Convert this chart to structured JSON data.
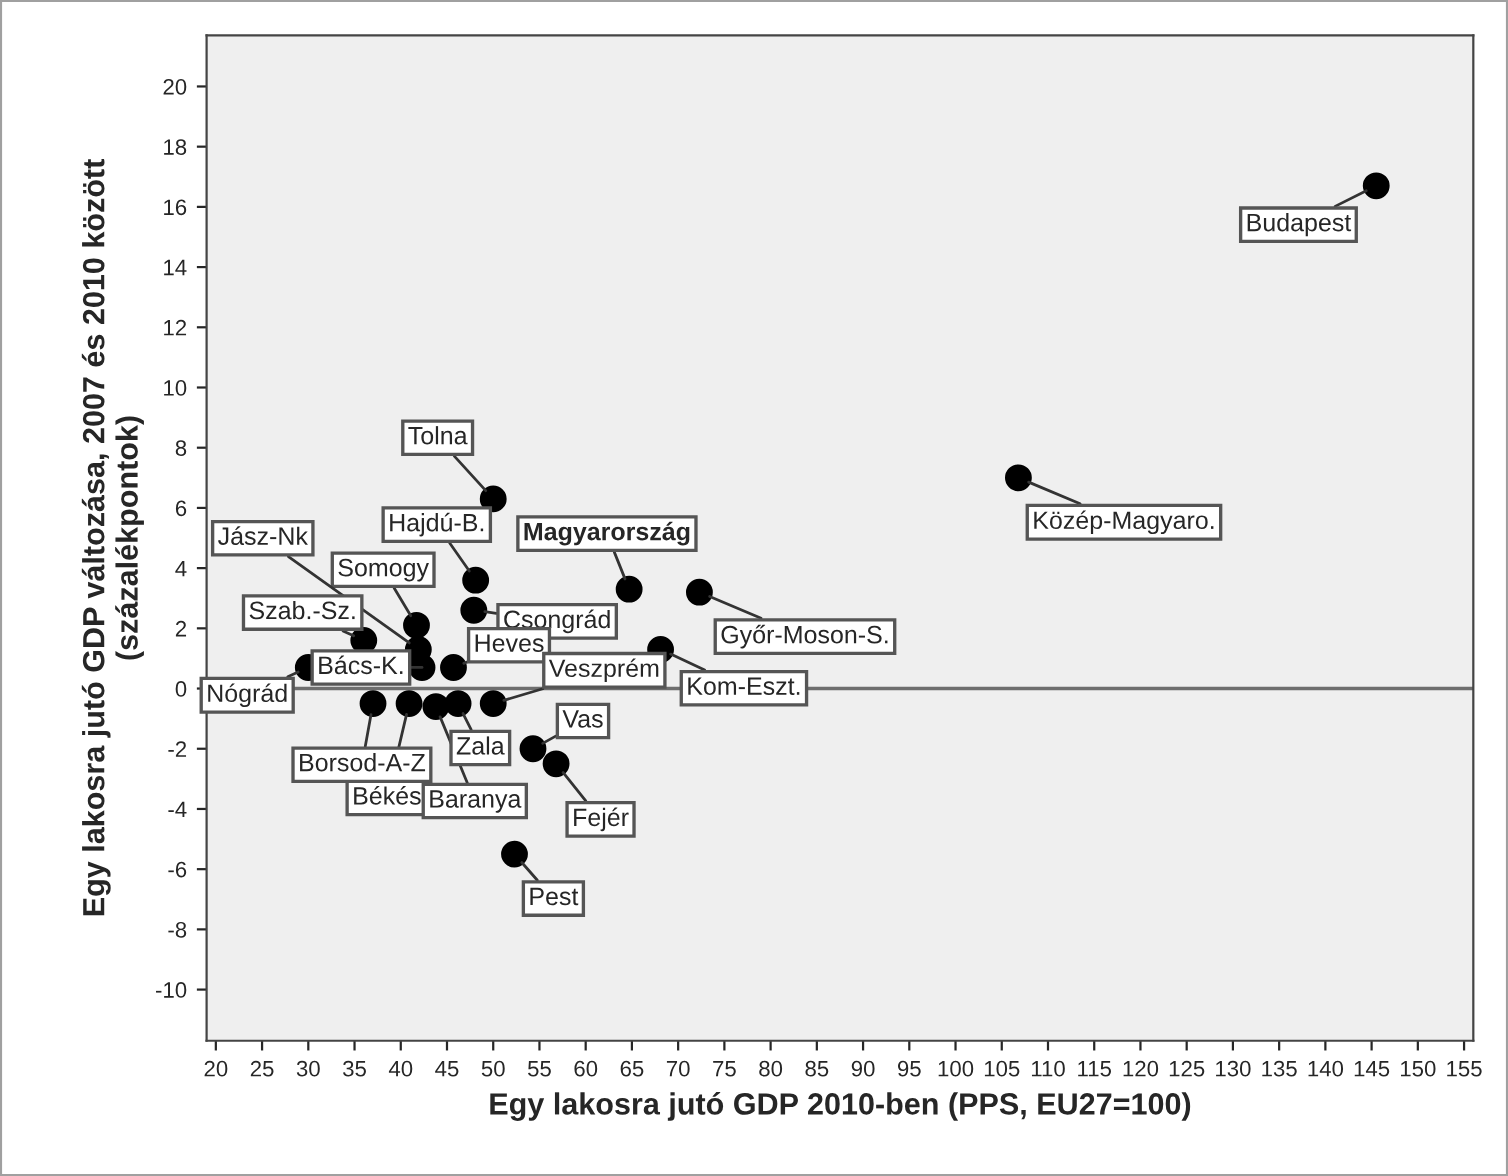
{
  "chart_data": {
    "type": "scatter",
    "xlabel": "Egy lakosra jutó GDP 2010-ben (PPS, EU27=100)",
    "ylabel": "Egy lakosra jutó GDP változása, 2007 és 2010 között\n(százalékpontok)",
    "series": [
      {
        "color": "#000000",
        "x": [
          145.5,
          106.8,
          64.7,
          72.3,
          68.1,
          50.0,
          48.1,
          47.9,
          41.7,
          41.9,
          42.3,
          36.0,
          30.0,
          45.7,
          50.0,
          37.0,
          40.9,
          43.8,
          46.2,
          54.3,
          56.8,
          52.3
        ],
        "values": [
          16.7,
          7.0,
          3.3,
          3.2,
          1.3,
          6.3,
          3.6,
          2.6,
          2.1,
          1.3,
          0.7,
          1.6,
          0.7,
          0.7,
          -0.5,
          -0.5,
          -0.5,
          -0.6,
          -0.5,
          -2.0,
          -2.5,
          -5.5
        ]
      }
    ],
    "annotations": [
      {
        "text": "Budapest",
        "x": 145.5,
        "y": 16.7
      },
      {
        "text": "Közép-Magyaro.",
        "x": 106.8,
        "y": 7.0
      },
      {
        "text": "Magyarország",
        "x": 64.7,
        "y": 3.3
      },
      {
        "text": "Győr-Moson-S.",
        "x": 72.3,
        "y": 3.2
      },
      {
        "text": "Kom-Eszt.",
        "x": 68.1,
        "y": 1.3
      },
      {
        "text": "Tolna",
        "x": 50.0,
        "y": 6.3
      },
      {
        "text": "Hajdú-B.",
        "x": 48.1,
        "y": 3.6
      },
      {
        "text": "Csongrád",
        "x": 47.9,
        "y": 2.6
      },
      {
        "text": "Somogy",
        "x": 41.7,
        "y": 2.1
      },
      {
        "text": "Jász-Nk",
        "x": 41.9,
        "y": 1.3
      },
      {
        "text": "Bács-K.",
        "x": 42.3,
        "y": 0.7
      },
      {
        "text": "Szab.-Sz.",
        "x": 36.0,
        "y": 1.6
      },
      {
        "text": "Nógrád",
        "x": 30.0,
        "y": 0.7
      },
      {
        "text": "Heves",
        "x": 45.7,
        "y": 0.7
      },
      {
        "text": "Veszprém",
        "x": 50.0,
        "y": -0.5
      },
      {
        "text": "Borsod-A-Z",
        "x": 37.0,
        "y": -0.5
      },
      {
        "text": "Békés",
        "x": 40.9,
        "y": -0.5
      },
      {
        "text": "Baranya",
        "x": 43.8,
        "y": -0.6
      },
      {
        "text": "Zala",
        "x": 46.2,
        "y": -0.5
      },
      {
        "text": "Vas",
        "x": 54.3,
        "y": -2.0
      },
      {
        "text": "Fejér",
        "x": 56.8,
        "y": -2.5
      },
      {
        "text": "Pest",
        "x": 52.3,
        "y": -5.5
      }
    ],
    "ref_lines": [
      {
        "axis": "y",
        "value": 0,
        "color": "#6e6e6e"
      }
    ],
    "xlim": [
      19,
      156
    ],
    "xticks": [
      20,
      25,
      30,
      35,
      40,
      45,
      50,
      55,
      60,
      65,
      70,
      75,
      80,
      85,
      90,
      95,
      100,
      105,
      110,
      115,
      120,
      125,
      130,
      135,
      140,
      145,
      150,
      155
    ],
    "ylim": [
      -11.7,
      21.7
    ],
    "yticks": [
      -10,
      -8,
      -6,
      -4,
      -2,
      0,
      2,
      4,
      6,
      8,
      10,
      12,
      14,
      16,
      18,
      20
    ],
    "marker": "circle",
    "grid": false,
    "legend": false
  }
}
